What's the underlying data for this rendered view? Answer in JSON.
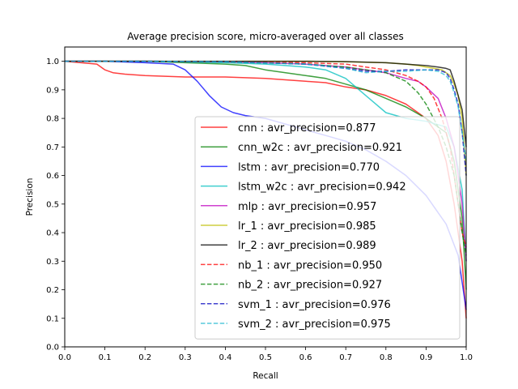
{
  "chart_data": {
    "type": "line",
    "title": "Average precision score, micro-averaged over all classes",
    "xlabel": "Recall",
    "ylabel": "Precision",
    "xlim": [
      0.0,
      1.0
    ],
    "ylim": [
      0.0,
      1.05
    ],
    "xticks": [
      "0.0",
      "0.1",
      "0.2",
      "0.3",
      "0.4",
      "0.5",
      "0.6",
      "0.7",
      "0.8",
      "0.9",
      "1.0"
    ],
    "yticks": [
      "0.0",
      "0.1",
      "0.2",
      "0.3",
      "0.4",
      "0.5",
      "0.6",
      "0.7",
      "0.8",
      "0.9",
      "1.0"
    ],
    "grid": false,
    "legend_position": "lower-right",
    "series": [
      {
        "name": "cnn : avr_precision=0.877",
        "color": "#ff0000",
        "dash": "solid",
        "x": [
          0.0,
          0.08,
          0.1,
          0.12,
          0.15,
          0.2,
          0.3,
          0.4,
          0.5,
          0.6,
          0.65,
          0.7,
          0.75,
          0.8,
          0.85,
          0.9,
          0.93,
          0.95,
          0.97,
          0.99,
          1.0
        ],
        "y": [
          1.0,
          0.99,
          0.97,
          0.96,
          0.955,
          0.95,
          0.945,
          0.945,
          0.94,
          0.93,
          0.925,
          0.91,
          0.9,
          0.88,
          0.85,
          0.8,
          0.74,
          0.65,
          0.5,
          0.3,
          0.1
        ]
      },
      {
        "name": "cnn_w2c : avr_precision=0.921",
        "color": "#008000",
        "dash": "solid",
        "x": [
          0.0,
          0.1,
          0.2,
          0.3,
          0.4,
          0.45,
          0.5,
          0.55,
          0.6,
          0.65,
          0.7,
          0.75,
          0.8,
          0.85,
          0.9,
          0.95,
          0.97,
          0.99,
          1.0
        ],
        "y": [
          1.0,
          1.0,
          1.0,
          0.995,
          0.99,
          0.985,
          0.97,
          0.96,
          0.95,
          0.94,
          0.92,
          0.9,
          0.87,
          0.84,
          0.8,
          0.75,
          0.65,
          0.45,
          0.2
        ]
      },
      {
        "name": "lstm : avr_precision=0.770",
        "color": "#0000ff",
        "dash": "solid",
        "x": [
          0.0,
          0.1,
          0.2,
          0.27,
          0.3,
          0.33,
          0.36,
          0.39,
          0.42,
          0.45,
          0.5,
          0.55,
          0.6,
          0.65,
          0.7,
          0.75,
          0.8,
          0.85,
          0.9,
          0.95,
          0.98,
          1.0
        ],
        "y": [
          1.0,
          1.0,
          0.995,
          0.99,
          0.97,
          0.93,
          0.88,
          0.84,
          0.82,
          0.81,
          0.8,
          0.78,
          0.76,
          0.74,
          0.72,
          0.69,
          0.65,
          0.6,
          0.53,
          0.43,
          0.32,
          0.13
        ]
      },
      {
        "name": "lstm_w2c : avr_precision=0.942",
        "color": "#00bfbf",
        "dash": "solid",
        "x": [
          0.0,
          0.2,
          0.4,
          0.5,
          0.55,
          0.6,
          0.65,
          0.7,
          0.75,
          0.8,
          0.85,
          0.9,
          0.95,
          0.97,
          0.99,
          1.0
        ],
        "y": [
          1.0,
          1.0,
          0.995,
          0.99,
          0.985,
          0.98,
          0.97,
          0.94,
          0.88,
          0.82,
          0.8,
          0.79,
          0.77,
          0.7,
          0.55,
          0.3
        ]
      },
      {
        "name": "mlp : avr_precision=0.957",
        "color": "#bf00bf",
        "dash": "solid",
        "x": [
          0.0,
          0.2,
          0.4,
          0.5,
          0.6,
          0.7,
          0.75,
          0.8,
          0.85,
          0.88,
          0.9,
          0.93,
          0.95,
          0.97,
          0.99,
          1.0
        ],
        "y": [
          1.0,
          1.0,
          0.998,
          0.995,
          0.99,
          0.98,
          0.97,
          0.96,
          0.94,
          0.93,
          0.91,
          0.87,
          0.8,
          0.7,
          0.5,
          0.3
        ]
      },
      {
        "name": "lr_1 : avr_precision=0.985",
        "color": "#bfbf00",
        "dash": "solid",
        "x": [
          0.0,
          0.2,
          0.4,
          0.6,
          0.7,
          0.8,
          0.85,
          0.88,
          0.9,
          0.92,
          0.94,
          0.96,
          0.97,
          0.98,
          0.99,
          1.0
        ],
        "y": [
          1.0,
          1.0,
          1.0,
          1.0,
          0.998,
          0.995,
          0.99,
          0.985,
          0.98,
          0.975,
          0.97,
          0.95,
          0.92,
          0.88,
          0.8,
          0.6
        ]
      },
      {
        "name": "lr_2 : avr_precision=0.989",
        "color": "#000000",
        "dash": "solid",
        "x": [
          0.0,
          0.2,
          0.4,
          0.6,
          0.7,
          0.8,
          0.85,
          0.9,
          0.93,
          0.95,
          0.96,
          0.97,
          0.98,
          0.99,
          1.0
        ],
        "y": [
          1.0,
          1.0,
          1.0,
          1.0,
          0.999,
          0.995,
          0.99,
          0.985,
          0.98,
          0.975,
          0.97,
          0.93,
          0.88,
          0.83,
          0.7
        ]
      },
      {
        "name": "nb_1 : avr_precision=0.950",
        "color": "#ff0000",
        "dash": "dashed",
        "x": [
          0.0,
          0.2,
          0.4,
          0.6,
          0.7,
          0.75,
          0.8,
          0.85,
          0.88,
          0.9,
          0.92,
          0.94,
          0.96,
          0.97,
          0.98,
          0.99,
          1.0
        ],
        "y": [
          1.0,
          1.0,
          0.998,
          0.995,
          0.99,
          0.98,
          0.97,
          0.95,
          0.93,
          0.91,
          0.87,
          0.8,
          0.7,
          0.6,
          0.5,
          0.4,
          0.35
        ]
      },
      {
        "name": "nb_2 : avr_precision=0.927",
        "color": "#008000",
        "dash": "dashed",
        "x": [
          0.0,
          0.2,
          0.4,
          0.6,
          0.7,
          0.8,
          0.85,
          0.88,
          0.9,
          0.93,
          0.95,
          0.97,
          0.98,
          0.99,
          1.0
        ],
        "y": [
          1.0,
          1.0,
          0.998,
          0.99,
          0.98,
          0.96,
          0.93,
          0.89,
          0.85,
          0.77,
          0.7,
          0.6,
          0.5,
          0.4,
          0.32
        ]
      },
      {
        "name": "svm_1 : avr_precision=0.976",
        "color": "#0000bf",
        "dash": "dashed",
        "x": [
          0.0,
          0.2,
          0.4,
          0.6,
          0.7,
          0.75,
          0.8,
          0.85,
          0.9,
          0.93,
          0.95,
          0.96,
          0.97,
          0.98,
          0.99,
          1.0
        ],
        "y": [
          1.0,
          1.0,
          0.999,
          0.99,
          0.975,
          0.965,
          0.965,
          0.97,
          0.97,
          0.97,
          0.96,
          0.94,
          0.9,
          0.85,
          0.75,
          0.6
        ]
      },
      {
        "name": "svm_2 : avr_precision=0.975",
        "color": "#1fb8d0",
        "dash": "dashed",
        "x": [
          0.0,
          0.2,
          0.4,
          0.6,
          0.7,
          0.75,
          0.8,
          0.85,
          0.9,
          0.93,
          0.95,
          0.96,
          0.97,
          0.98,
          0.99,
          1.0
        ],
        "y": [
          1.0,
          1.0,
          0.999,
          0.99,
          0.975,
          0.96,
          0.965,
          0.965,
          0.97,
          0.965,
          0.95,
          0.93,
          0.89,
          0.84,
          0.75,
          0.65
        ]
      }
    ]
  }
}
